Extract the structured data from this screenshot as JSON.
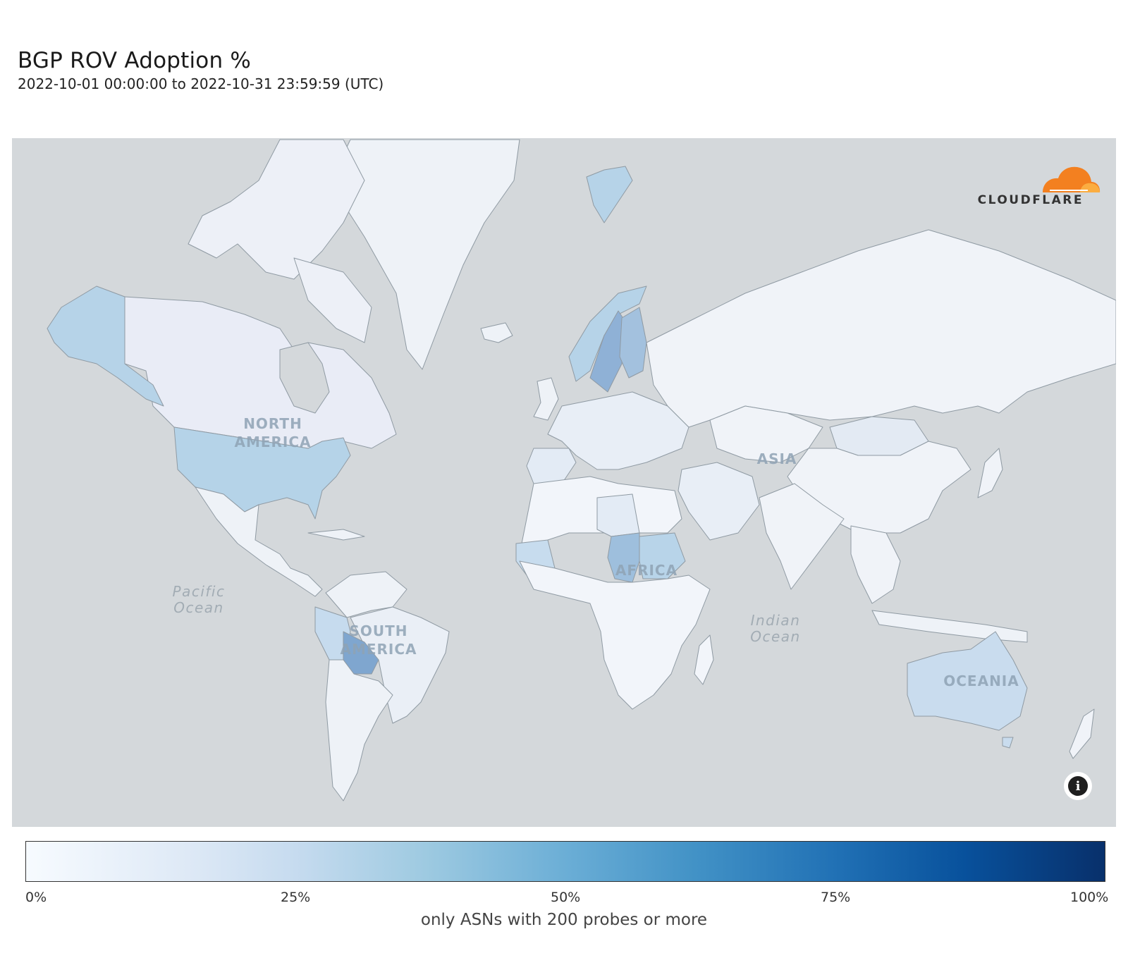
{
  "header": {
    "title": "BGP ROV Adoption %",
    "subtitle": "2022-10-01 00:00:00 to 2022-10-31 23:59:59 (UTC)"
  },
  "map": {
    "logo_text": "CLOUDFLARE",
    "labels": {
      "north_america": [
        "NORTH",
        "AMERICA"
      ],
      "south_america": [
        "SOUTH",
        "AMERICA"
      ],
      "africa": "AFRICA",
      "asia": "ASIA",
      "oceania": "OCEANIA",
      "pacific": [
        "Pacific",
        "Ocean"
      ],
      "indian": [
        "Indian",
        "Ocean"
      ]
    },
    "info_icon": "info-icon",
    "colors": {
      "water": "#d4d8db",
      "border": "#444444",
      "logo_orange": "#f38020"
    }
  },
  "chart_data": {
    "type": "choropleth",
    "title": "BGP ROV Adoption %",
    "subtitle": "2022-10-01 00:00:00 to 2022-10-31 23:59:59 (UTC)",
    "colorscale": [
      "#f7fbff",
      "#c6dbef",
      "#6baed6",
      "#2171b5",
      "#08306b"
    ],
    "range": [
      0,
      100
    ],
    "legend": {
      "ticks": [
        "0%",
        "25%",
        "50%",
        "75%",
        "100%"
      ],
      "tick_values": [
        0,
        25,
        50,
        75,
        100
      ],
      "caption": "only ASNs with 200 probes or more"
    },
    "regions": [
      {
        "name": "United States",
        "value": 30
      },
      {
        "name": "Alaska",
        "value": 30
      },
      {
        "name": "Canada",
        "value": 5
      },
      {
        "name": "Greenland",
        "value": 3
      },
      {
        "name": "Mexico",
        "value": 3
      },
      {
        "name": "Brazil",
        "value": 4
      },
      {
        "name": "Bolivia",
        "value": 52
      },
      {
        "name": "Peru",
        "value": 22
      },
      {
        "name": "Argentina",
        "value": 4
      },
      {
        "name": "Norway",
        "value": 28
      },
      {
        "name": "Sweden",
        "value": 48
      },
      {
        "name": "Finland",
        "value": 38
      },
      {
        "name": "Svalbard",
        "value": 30
      },
      {
        "name": "Russia",
        "value": 3
      },
      {
        "name": "China",
        "value": 3
      },
      {
        "name": "Mongolia",
        "value": 8
      },
      {
        "name": "Chad",
        "value": 45
      },
      {
        "name": "Sudan",
        "value": 28
      },
      {
        "name": "Mauritania",
        "value": 20
      },
      {
        "name": "Libya",
        "value": 8
      },
      {
        "name": "Australia",
        "value": 22
      },
      {
        "name": "India",
        "value": 3
      }
    ]
  }
}
